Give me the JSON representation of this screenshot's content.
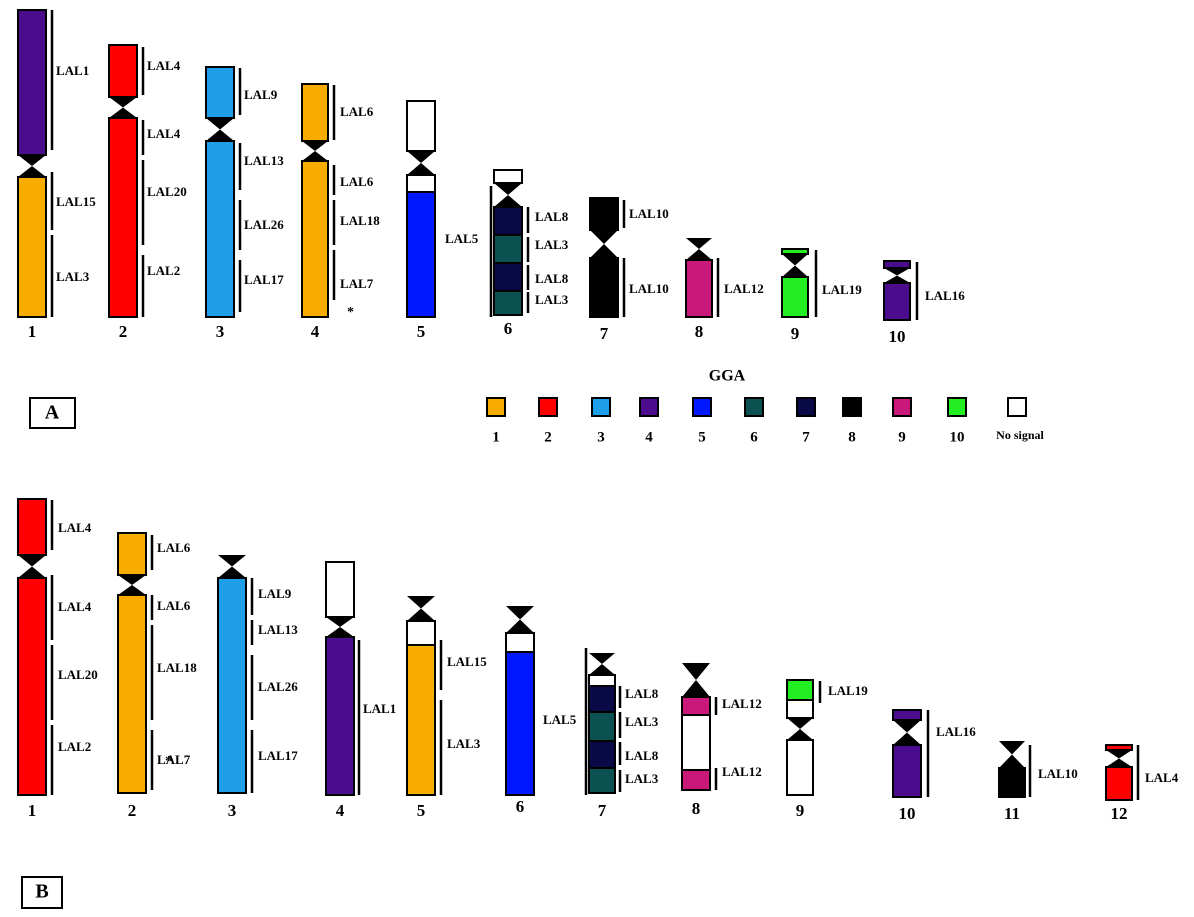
{
  "panels": [
    {
      "label": "A",
      "chromosomes": [
        {
          "number": "1",
          "bands": [
            "LAL1",
            "LAL15",
            "LAL3"
          ]
        },
        {
          "number": "2",
          "bands": [
            "LAL4",
            "LAL4",
            "LAL20",
            "LAL2"
          ]
        },
        {
          "number": "3",
          "bands": [
            "LAL9",
            "LAL13",
            "LAL26",
            "LAL17"
          ]
        },
        {
          "number": "4",
          "bands": [
            "LAL6",
            "LAL6",
            "LAL18",
            "LAL7"
          ],
          "note": "*"
        },
        {
          "number": "5",
          "bands": [
            "LAL5"
          ]
        },
        {
          "number": "6",
          "bands": [
            "LAL8",
            "LAL3",
            "LAL8",
            "LAL3"
          ]
        },
        {
          "number": "7",
          "bands": [
            "LAL10",
            "LAL10"
          ]
        },
        {
          "number": "8",
          "bands": [
            "LAL12"
          ]
        },
        {
          "number": "9",
          "bands": [
            "LAL19"
          ]
        },
        {
          "number": "10",
          "bands": [
            "LAL16"
          ]
        }
      ]
    },
    {
      "label": "B",
      "chromosomes": [
        {
          "number": "1",
          "bands": [
            "LAL4",
            "LAL4",
            "LAL20",
            "LAL2"
          ]
        },
        {
          "number": "2",
          "bands": [
            "LAL6",
            "LAL6",
            "LAL18",
            "LAL7"
          ],
          "note": "*"
        },
        {
          "number": "3",
          "bands": [
            "LAL9",
            "LAL13",
            "LAL26",
            "LAL17"
          ]
        },
        {
          "number": "4",
          "bands": [
            "LAL1"
          ]
        },
        {
          "number": "5",
          "bands": [
            "LAL15",
            "LAL3"
          ]
        },
        {
          "number": "6",
          "bands": [
            "LAL5"
          ]
        },
        {
          "number": "7",
          "bands": [
            "LAL8",
            "LAL3",
            "LAL8",
            "LAL3"
          ]
        },
        {
          "number": "8",
          "bands": [
            "LAL12",
            "LAL12"
          ]
        },
        {
          "number": "9",
          "bands": [
            "LAL19"
          ]
        },
        {
          "number": "10",
          "bands": [
            "LAL16"
          ]
        },
        {
          "number": "11",
          "bands": [
            "LAL10"
          ]
        },
        {
          "number": "12",
          "bands": [
            "LAL4"
          ]
        }
      ]
    }
  ],
  "legend": {
    "title": "GGA",
    "items": [
      {
        "label": "1",
        "color": "#f9ac00"
      },
      {
        "label": "2",
        "color": "#ff0000"
      },
      {
        "label": "3",
        "color": "#1e9ee8"
      },
      {
        "label": "4",
        "color": "#4b0d8e"
      },
      {
        "label": "5",
        "color": "#0018ff"
      },
      {
        "label": "6",
        "color": "#0b5151"
      },
      {
        "label": "7",
        "color": "#0a0a46"
      },
      {
        "label": "8",
        "color": "#000000"
      },
      {
        "label": "9",
        "color": "#c8187a"
      },
      {
        "label": "10",
        "color": "#22ee22"
      },
      {
        "label": "No signal",
        "color": "#ffffff"
      }
    ]
  }
}
